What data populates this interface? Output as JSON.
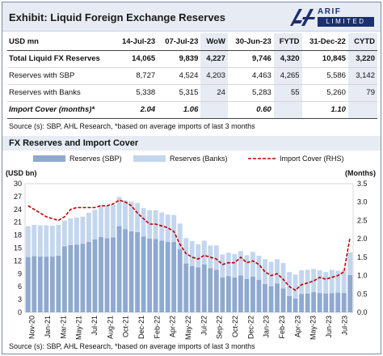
{
  "header": {
    "title": "Exhibit: Liquid Foreign Exchange Reserves",
    "logo_name": "ARIF HABIB",
    "logo_sub": "LIMITED"
  },
  "table": {
    "columns": [
      "USD mn",
      "14-Jul-23",
      "07-Jul-23",
      "WoW",
      "30-Jun-23",
      "FYTD",
      "31-Dec-22",
      "CYTD"
    ],
    "rows": [
      {
        "label": "Total Liquid FX Reserves",
        "values": [
          "14,065",
          "9,839",
          "4,227",
          "9,746",
          "4,320",
          "10,845",
          "3,220"
        ]
      },
      {
        "label": "Reserves with SBP",
        "values": [
          "8,727",
          "4,524",
          "4,203",
          "4,463",
          "4,265",
          "5,586",
          "3,142"
        ]
      },
      {
        "label": "Reserves with Banks",
        "values": [
          "5,338",
          "5,315",
          "24",
          "5,283",
          "55",
          "5,260",
          "79"
        ]
      },
      {
        "label": "Import Cover (months)*",
        "values": [
          "2.04",
          "1.06",
          "",
          "0.60",
          "",
          "1.10",
          ""
        ]
      }
    ]
  },
  "source_top": "Source (s): SBP, AHL Research, *based on average imports of last 3 months",
  "source_bottom": "Source (s): SBP, AHL Research, *based on average imports of last 3 months",
  "chart_title": "FX Reserves and Import Cover",
  "colors": {
    "sbp": "#8fa9cf",
    "banks": "#c3d6ee",
    "cover": "#c00000",
    "band": "#e6ebf4"
  },
  "chart_data": {
    "type": "bar",
    "stacked": true,
    "y_left": {
      "label": "(USD bn)",
      "min": 0,
      "max": 30,
      "ticks": [
        0,
        3,
        6,
        9,
        12,
        15,
        18,
        21,
        24,
        27,
        30
      ]
    },
    "y_right": {
      "label": "(Months)",
      "min": 0,
      "max": 3.5,
      "ticks": [
        "0.0",
        "0.5",
        "1.0",
        "1.5",
        "2.0",
        "2.5",
        "3.0",
        "3.5"
      ]
    },
    "grid": false,
    "legend_position": "top",
    "x_labels": [
      "Nov-20",
      "Jan-21",
      "Mar-21",
      "May-21",
      "Jul-21",
      "Aug-21",
      "Oct-21",
      "Dec-21",
      "Feb-22",
      "Apr-22",
      "May-22",
      "Jul-22",
      "Sep-22",
      "Oct-22",
      "Dec-22",
      "Jan-23",
      "Feb-23",
      "Apr-23",
      "May-23",
      "Jun-23",
      "Jul-23"
    ],
    "series": [
      {
        "name": "Reserves (SBP)",
        "type": "bar",
        "axis": "left",
        "values": [
          12.9,
          13.1,
          13.0,
          13.0,
          13.0,
          13.2,
          15.4,
          15.7,
          15.8,
          16.0,
          16.4,
          17.0,
          17.6,
          17.3,
          17.5,
          20.1,
          19.4,
          18.9,
          18.7,
          17.7,
          17.2,
          17.1,
          16.7,
          16.4,
          16.4,
          14.7,
          11.4,
          10.8,
          10.5,
          11.2,
          10.3,
          9.9,
          8.1,
          8.4,
          8.1,
          8.6,
          7.8,
          8.3,
          7.6,
          6.6,
          6.1,
          6.7,
          5.6,
          3.8,
          3.2,
          4.3,
          4.4,
          4.7,
          4.5,
          4.4,
          4.5,
          4.6,
          4.5,
          8.7
        ]
      },
      {
        "name": "Reserves (Banks)",
        "type": "bar",
        "axis": "left",
        "values": [
          7.2,
          7.3,
          7.3,
          7.3,
          7.2,
          7.2,
          6.0,
          6.2,
          6.3,
          6.3,
          6.8,
          6.9,
          7.4,
          7.5,
          7.6,
          6.8,
          6.7,
          6.9,
          6.8,
          6.6,
          6.6,
          6.7,
          6.6,
          6.4,
          6.3,
          6.0,
          5.9,
          5.8,
          5.4,
          5.5,
          5.3,
          5.7,
          5.4,
          5.5,
          5.5,
          5.7,
          5.5,
          5.8,
          5.6,
          5.8,
          5.7,
          5.7,
          5.9,
          5.6,
          5.6,
          5.5,
          5.5,
          5.4,
          5.3,
          5.0,
          5.4,
          5.1,
          5.3,
          5.3
        ]
      },
      {
        "name": "Import Cover (RHS)",
        "type": "line",
        "axis": "right",
        "values": [
          2.9,
          2.8,
          2.7,
          2.6,
          2.55,
          2.5,
          2.6,
          2.8,
          2.85,
          2.85,
          2.85,
          2.85,
          2.9,
          2.9,
          2.95,
          3.05,
          3.0,
          2.9,
          2.7,
          2.55,
          2.4,
          2.4,
          2.35,
          2.3,
          2.2,
          1.85,
          1.6,
          1.5,
          1.45,
          1.55,
          1.5,
          1.45,
          1.3,
          1.35,
          1.35,
          1.5,
          1.35,
          1.4,
          1.3,
          1.1,
          1.0,
          1.05,
          0.9,
          0.7,
          0.6,
          0.75,
          0.8,
          0.85,
          0.95,
          0.9,
          0.95,
          1.0,
          1.1,
          2.04
        ]
      }
    ]
  }
}
